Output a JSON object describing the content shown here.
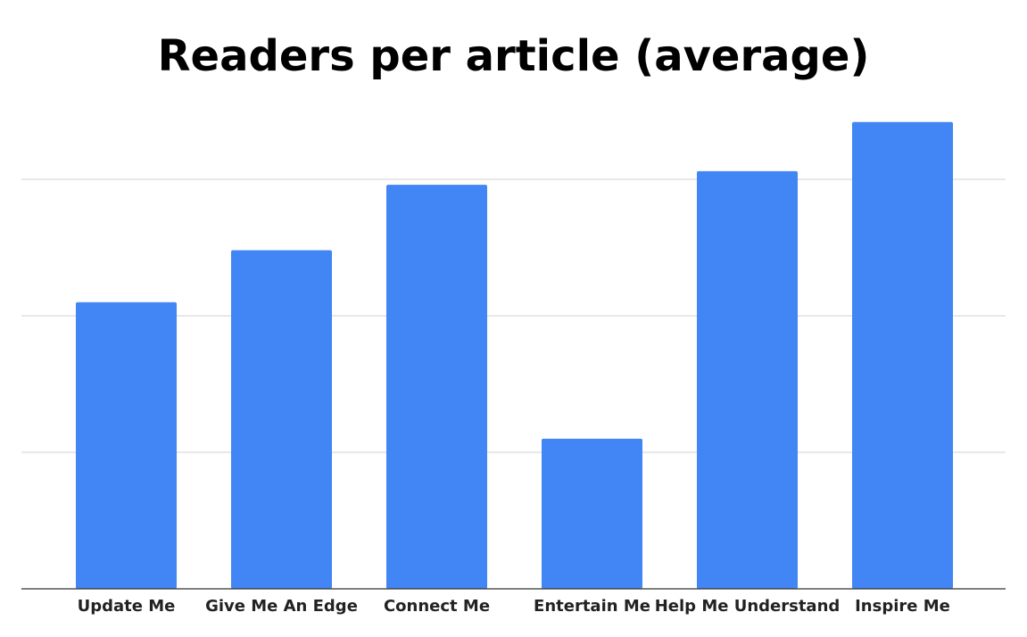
{
  "chart_data": {
    "type": "bar",
    "title": "Readers per article (average)",
    "xlabel": "",
    "ylabel": "",
    "categories": [
      "Update Me",
      "Give Me An Edge",
      "Connect Me",
      "Entertain Me",
      "Help Me Understand",
      "Inspire Me"
    ],
    "values": [
      2.1,
      2.48,
      2.96,
      1.1,
      3.06,
      3.42
    ],
    "ylim": [
      0,
      3.5
    ],
    "gridlines": [
      1,
      2,
      3
    ],
    "y_tick_labels_shown": false,
    "grid": true,
    "legend": "none",
    "colors": {
      "bar": "#4285f4",
      "grid": "#d0d0d0",
      "axis": "#333333",
      "title": "#000000",
      "tick_label": "#222222"
    }
  }
}
